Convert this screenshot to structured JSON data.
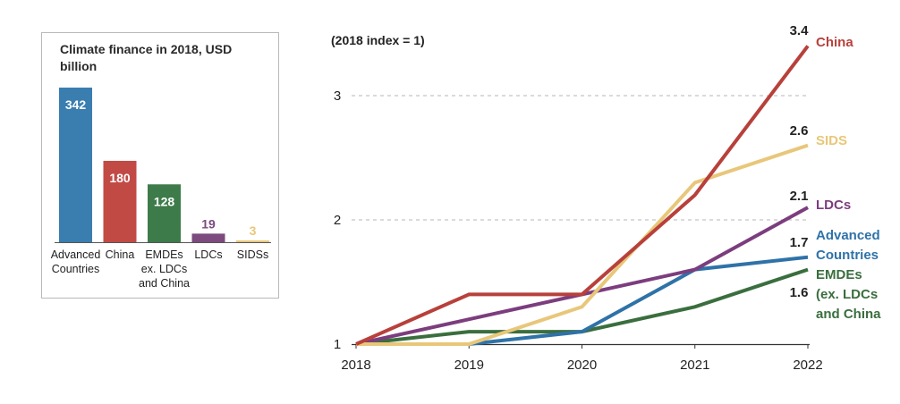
{
  "chart_data": [
    {
      "type": "bar",
      "title": "Climate finance in 2018, USD billion",
      "categories": [
        [
          "Advanced",
          "Countries"
        ],
        [
          "China"
        ],
        [
          "EMDEs",
          "ex. LDCs",
          "and China"
        ],
        [
          "LDCs"
        ],
        [
          "SIDSs"
        ]
      ],
      "values": [
        342,
        180,
        128,
        19,
        3
      ],
      "colors": [
        "#3a7eb0",
        "#c24a45",
        "#3d7b4a",
        "#7c4a7e",
        "#e8c77a"
      ],
      "ylim": [
        0,
        342
      ],
      "xlabel": "",
      "ylabel": ""
    },
    {
      "type": "line",
      "title": "(2018 index = 1)",
      "x": [
        2018,
        2019,
        2020,
        2021,
        2022
      ],
      "yticks": [
        1,
        2,
        3
      ],
      "ylim": [
        1,
        3.4
      ],
      "grid": true,
      "series": [
        {
          "name": "China",
          "end_label": "3.4",
          "color": "#b8403b",
          "values": [
            1.0,
            1.4,
            1.4,
            2.2,
            3.4
          ]
        },
        {
          "name": "SIDS",
          "end_label": "2.6",
          "color": "#e8c77a",
          "values": [
            1.0,
            1.0,
            1.3,
            2.3,
            2.6
          ]
        },
        {
          "name": "LDCs",
          "end_label": "2.1",
          "color": "#7c3d7e",
          "values": [
            1.0,
            1.2,
            1.4,
            1.6,
            2.1
          ]
        },
        {
          "name": "Advanced Countries",
          "end_label": "1.7",
          "color": "#2f72a8",
          "values": [
            null,
            1.0,
            1.1,
            1.6,
            1.7
          ]
        },
        {
          "name": "EMDEs (ex. LDCs and China",
          "end_label": "1.6",
          "color": "#3a6e3e",
          "values": [
            1.0,
            1.1,
            1.1,
            1.3,
            1.6
          ]
        }
      ]
    }
  ]
}
